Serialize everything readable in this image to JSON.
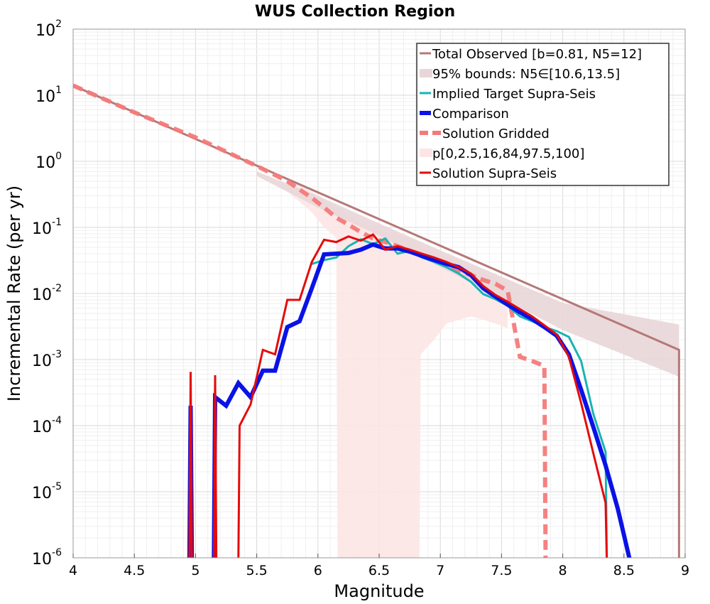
{
  "chart_data": {
    "type": "line",
    "title": "WUS Collection Region",
    "xlabel": "Magnitude",
    "ylabel": "Incremental Rate (per yr)",
    "xlim": [
      4,
      9
    ],
    "ylim": [
      1e-06,
      100
    ],
    "yscale": "log",
    "grid": true,
    "legend_position": "top-right",
    "x_ticks": [
      "4",
      "4.5",
      "5",
      "5.5",
      "6",
      "6.5",
      "7",
      "7.5",
      "8",
      "8.5",
      "9"
    ],
    "y_ticks": [
      {
        "base": "10",
        "exp": "2",
        "value": 100
      },
      {
        "base": "10",
        "exp": "1",
        "value": 10
      },
      {
        "base": "10",
        "exp": "0",
        "value": 1
      },
      {
        "base": "10",
        "exp": "-1",
        "value": 0.1
      },
      {
        "base": "10",
        "exp": "-2",
        "value": 0.01
      },
      {
        "base": "10",
        "exp": "-3",
        "value": 0.001
      },
      {
        "base": "10",
        "exp": "-4",
        "value": 0.0001
      },
      {
        "base": "10",
        "exp": "-5",
        "value": 1e-05
      },
      {
        "base": "10",
        "exp": "-6",
        "value": 1e-06
      }
    ],
    "series": [
      {
        "name": "Total Observed [b=0.81, N5=12]",
        "style": "line",
        "color": "#b57878",
        "width": 3,
        "x": [
          4.0,
          8.95,
          8.95
        ],
        "y": [
          14,
          0.0014,
          1e-07
        ]
      },
      {
        "name": "95% bounds: N5∈[10.6,13.5]",
        "style": "band",
        "color": "#e9d6d8",
        "x": [
          5.5,
          6.0,
          6.5,
          7.0,
          7.5,
          8.0,
          8.95
        ],
        "lower": [
          0.6,
          0.2,
          0.075,
          0.025,
          0.0085,
          0.0028,
          0.00055
        ],
        "upper": [
          0.7,
          0.3,
          0.115,
          0.045,
          0.018,
          0.0072,
          0.0034
        ]
      },
      {
        "name": "Implied Target Supra-Seis",
        "style": "line",
        "color": "#1ab3b3",
        "width": 3,
        "x": [
          5.95,
          6.05,
          6.15,
          6.25,
          6.35,
          6.45,
          6.55,
          6.65,
          6.75,
          6.85,
          6.95,
          7.05,
          7.15,
          7.25,
          7.35,
          7.45,
          7.55,
          7.65,
          7.75,
          7.85,
          7.95,
          8.05,
          8.15,
          8.25,
          8.35,
          8.36
        ],
        "y": [
          0.028,
          0.032,
          0.035,
          0.052,
          0.066,
          0.056,
          0.068,
          0.04,
          0.044,
          0.035,
          0.03,
          0.025,
          0.02,
          0.015,
          0.0098,
          0.0082,
          0.0065,
          0.0045,
          0.0038,
          0.0031,
          0.0027,
          0.0022,
          0.00095,
          0.00015,
          4e-05,
          1e-07
        ]
      },
      {
        "name": "Comparison",
        "style": "line",
        "color": "#0a12e6",
        "width": 6,
        "x": [
          4.95,
          4.96,
          4.97,
          5.15,
          5.16,
          5.25,
          5.35,
          5.45,
          5.55,
          5.65,
          5.75,
          5.85,
          5.95,
          6.05,
          6.15,
          6.25,
          6.35,
          6.45,
          6.55,
          6.65,
          6.75,
          6.85,
          6.95,
          7.05,
          7.15,
          7.25,
          7.35,
          7.45,
          7.55,
          7.65,
          7.75,
          7.85,
          7.95,
          8.05,
          8.15,
          8.25,
          8.35,
          8.45,
          8.55
        ],
        "y": [
          1e-07,
          0.0002,
          1e-07,
          1e-07,
          0.00027,
          0.0002,
          0.00044,
          0.00027,
          0.00068,
          0.00068,
          0.0031,
          0.0038,
          0.012,
          0.039,
          0.04,
          0.041,
          0.046,
          0.055,
          0.048,
          0.048,
          0.043,
          0.037,
          0.032,
          0.028,
          0.025,
          0.019,
          0.012,
          0.009,
          0.0068,
          0.0052,
          0.0041,
          0.0031,
          0.0023,
          0.0012,
          0.00035,
          9.5e-05,
          2.5e-05,
          5.5e-06,
          1e-07
        ]
      },
      {
        "name": "Solution Gridded",
        "style": "dashed",
        "color": "#f47a7a",
        "width": 6,
        "x": [
          4.0,
          4.5,
          5.0,
          5.5,
          5.75,
          5.95,
          6.05,
          6.15,
          6.25,
          6.35,
          6.45,
          6.55,
          6.65,
          6.75,
          6.85,
          6.95,
          7.05,
          7.15,
          7.25,
          7.35,
          7.45,
          7.55,
          7.6,
          7.65,
          7.75,
          7.85,
          7.86
        ],
        "y": [
          14,
          5.5,
          2.3,
          0.85,
          0.5,
          0.28,
          0.2,
          0.14,
          0.11,
          0.085,
          0.068,
          0.06,
          0.052,
          0.044,
          0.037,
          0.031,
          0.027,
          0.022,
          0.019,
          0.016,
          0.014,
          0.011,
          0.0035,
          0.0011,
          0.00095,
          0.0008,
          1e-07
        ]
      },
      {
        "name": "p[0,2.5,16,84,97.5,100]",
        "style": "band",
        "color": "#fde5e5",
        "x": [
          5.75,
          5.95,
          6.05,
          6.15,
          6.16,
          6.25,
          6.35,
          6.45,
          6.55,
          6.65,
          6.75,
          6.83,
          6.84,
          6.95,
          7.05,
          7.15,
          7.25,
          7.35,
          7.45,
          7.55
        ],
        "lower": [
          0.35,
          0.17,
          0.1,
          0.07,
          1e-07,
          1e-07,
          1e-07,
          1e-07,
          1e-07,
          1e-07,
          1e-07,
          1e-07,
          0.0012,
          0.002,
          0.0035,
          0.004,
          0.0045,
          0.004,
          0.0035,
          0.003
        ],
        "upper": [
          0.55,
          0.35,
          0.26,
          0.19,
          0.19,
          0.15,
          0.12,
          0.1,
          0.085,
          0.075,
          0.065,
          0.055,
          0.05,
          0.043,
          0.036,
          0.03,
          0.025,
          0.021,
          0.017,
          0.015
        ]
      },
      {
        "name": "Solution Supra-Seis",
        "style": "line",
        "color": "#e60a0a",
        "width": 3,
        "x": [
          4.95,
          4.96,
          4.97,
          5.15,
          5.16,
          5.17,
          5.35,
          5.36,
          5.45,
          5.55,
          5.65,
          5.75,
          5.85,
          5.95,
          6.05,
          6.15,
          6.25,
          6.35,
          6.45,
          6.55,
          6.65,
          6.75,
          6.85,
          6.95,
          7.05,
          7.15,
          7.25,
          7.35,
          7.45,
          7.55,
          7.65,
          7.75,
          7.85,
          7.95,
          8.05,
          8.15,
          8.25,
          8.35,
          8.36
        ],
        "y": [
          1e-07,
          0.00065,
          1e-07,
          1e-07,
          0.00058,
          1e-07,
          1e-07,
          0.0001,
          0.00021,
          0.0014,
          0.0012,
          0.008,
          0.008,
          0.03,
          0.065,
          0.06,
          0.073,
          0.063,
          0.078,
          0.046,
          0.052,
          0.046,
          0.04,
          0.035,
          0.03,
          0.025,
          0.02,
          0.013,
          0.0095,
          0.0075,
          0.0058,
          0.0045,
          0.0033,
          0.0024,
          0.0011,
          0.00022,
          3.8e-05,
          6.8e-06,
          1e-07
        ]
      }
    ]
  }
}
